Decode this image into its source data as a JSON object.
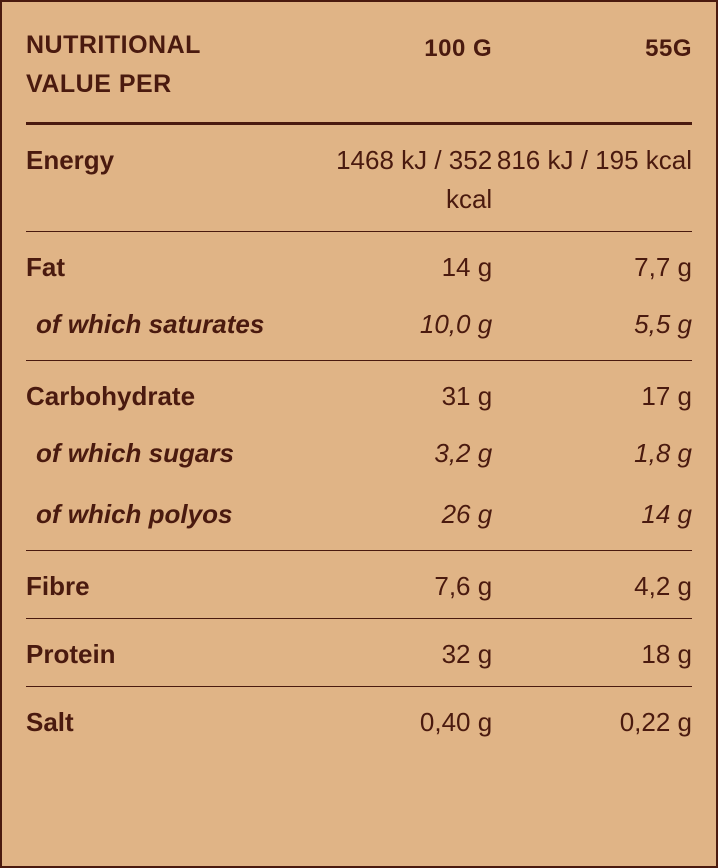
{
  "colors": {
    "background": "#e0b486",
    "text": "#4a1a0f",
    "border": "#4a1a0f"
  },
  "header": {
    "title": "NUTRITIONAL VALUE PER",
    "col1": "100 G",
    "col2": "55G"
  },
  "rows": [
    {
      "type": "main",
      "label": "Energy",
      "v100": "1468 kJ / 352 kcal",
      "v55": "816 kJ / 195 kcal"
    },
    {
      "type": "main",
      "label": "Fat",
      "v100": "14 g",
      "v55": "7,7 g"
    },
    {
      "type": "sub",
      "label": "of which saturates",
      "v100": "10,0 g",
      "v55": "5,5 g"
    },
    {
      "type": "main",
      "label": "Carbohydrate",
      "v100": "31 g",
      "v55": "17 g"
    },
    {
      "type": "sub",
      "label": "of which sugars",
      "v100": "3,2 g",
      "v55": "1,8 g"
    },
    {
      "type": "sub",
      "label": "of which polyos",
      "v100": "26 g",
      "v55": "14 g"
    },
    {
      "type": "main",
      "label": "Fibre",
      "v100": "7,6 g",
      "v55": "4,2 g"
    },
    {
      "type": "main",
      "label": "Protein",
      "v100": "32 g",
      "v55": "18 g"
    },
    {
      "type": "main",
      "label": "Salt",
      "v100": "0,40 g",
      "v55": "0,22 g"
    }
  ]
}
